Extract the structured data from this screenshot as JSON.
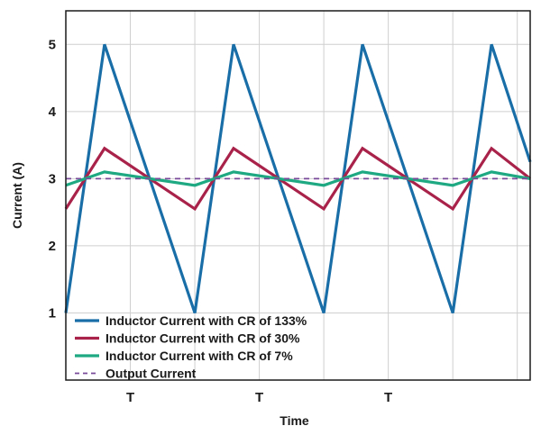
{
  "chart_data": {
    "type": "line",
    "title": "",
    "xlabel": "Time",
    "ylabel": "Current (A)",
    "ylim": [
      0,
      5.5
    ],
    "xlim": [
      0,
      3.6
    ],
    "y_ticks": [
      1,
      2,
      3,
      4,
      5
    ],
    "x_tick_labels": [
      {
        "x": 0.5,
        "label": "T"
      },
      {
        "x": 1.5,
        "label": "T"
      },
      {
        "x": 2.5,
        "label": "T"
      }
    ],
    "grid": true,
    "legend_position": "bottom-left",
    "series": [
      {
        "name": "Inductor Current with CR of 133%",
        "color": "#1a6ea8",
        "style": "solid",
        "x": [
          0,
          0.3,
          1.0,
          1.3,
          2.0,
          2.3,
          3.0,
          3.3,
          3.6
        ],
        "y": [
          1.0,
          5.0,
          1.0,
          5.0,
          1.0,
          5.0,
          1.0,
          5.0,
          3.25
        ]
      },
      {
        "name": "Inductor Current with CR of 30%",
        "color": "#a8224a",
        "style": "solid",
        "x": [
          0,
          0.3,
          1.0,
          1.3,
          2.0,
          2.3,
          3.0,
          3.3,
          3.6
        ],
        "y": [
          2.55,
          3.45,
          2.55,
          3.45,
          2.55,
          3.45,
          2.55,
          3.45,
          3.0
        ]
      },
      {
        "name": "Inductor Current with CR of 7%",
        "color": "#1ea982",
        "style": "solid",
        "x": [
          0,
          0.3,
          1.0,
          1.3,
          2.0,
          2.3,
          3.0,
          3.3,
          3.6
        ],
        "y": [
          2.9,
          3.1,
          2.9,
          3.1,
          2.9,
          3.1,
          2.9,
          3.1,
          3.0
        ]
      },
      {
        "name": "Output Current",
        "color": "#7a4a9a",
        "style": "dashed",
        "x": [
          0,
          3.6
        ],
        "y": [
          3.0,
          3.0
        ]
      }
    ]
  }
}
